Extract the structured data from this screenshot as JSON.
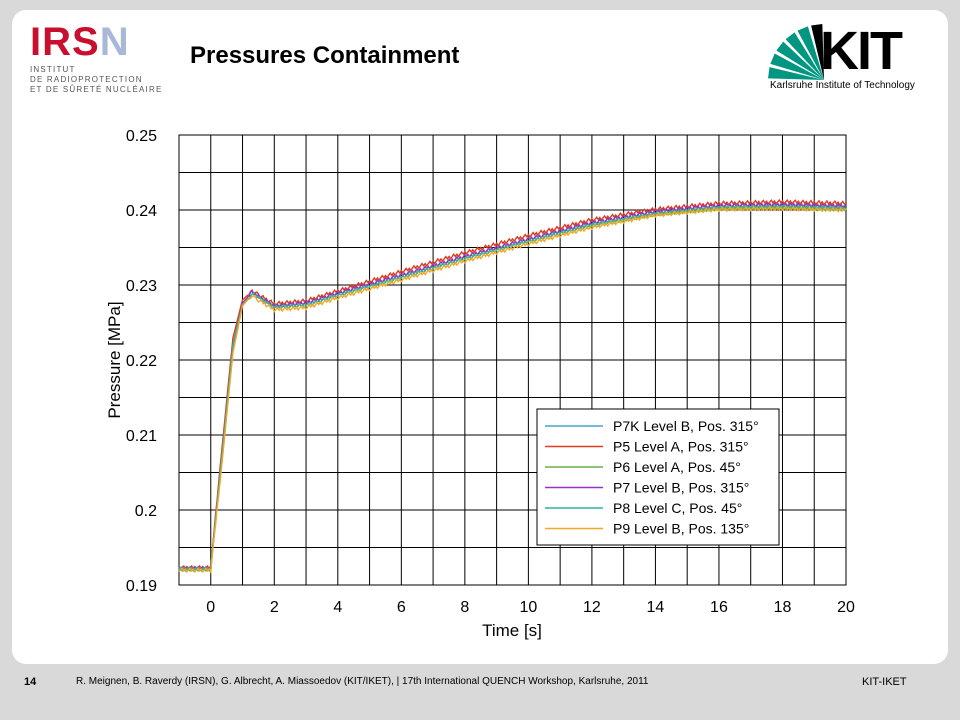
{
  "page": {
    "title": "Pressures Containment",
    "page_number": "14",
    "footer_text": "R. Meignen, B. Raverdy (IRSN), G. Albrecht, A. Miassoedov (KIT/IKET),  | 17th International QUENCH Workshop, Karlsruhe, 2011",
    "footer_right": "KIT-IKET"
  },
  "logos": {
    "irsn_letters": "IRS",
    "irsn_n": "N",
    "irsn_line1": "INSTITUT",
    "irsn_line2": "DE RADIOPROTECTION",
    "irsn_line3": "ET DE SÛRETÉ NUCLÉAIRE",
    "kit_word": "KIT",
    "kit_sub": "Karlsruhe Institute of Technology",
    "irsn_color": "#c8102e",
    "kit_color": "#009682"
  },
  "chart_data": {
    "type": "line",
    "xlabel": "Time [s]",
    "ylabel": "Pressure [MPa]",
    "xlim": [
      -1,
      20
    ],
    "ylim": [
      0.19,
      0.25
    ],
    "xticks": [
      0,
      2,
      4,
      6,
      8,
      10,
      12,
      14,
      16,
      18,
      20
    ],
    "yticks": [
      0.19,
      0.2,
      0.21,
      0.22,
      0.23,
      0.24,
      0.25
    ],
    "ytick_labels": [
      "0.19",
      "0.2",
      "0.21",
      "0.22",
      "0.23",
      "0.24",
      "0.25"
    ],
    "grid": true,
    "legend_position": "lower-right",
    "series": [
      {
        "name": "P7K Level B, Pos. 315°",
        "color": "#4aa6c8",
        "x": [
          -1,
          0,
          0.3,
          0.7,
          1.0,
          1.3,
          1.5,
          2.0,
          3.0,
          4.0,
          6.0,
          8.0,
          10.0,
          12.0,
          14.0,
          16.0,
          18.0,
          20.0
        ],
        "y": [
          0.1922,
          0.1922,
          0.205,
          0.222,
          0.2275,
          0.229,
          0.2285,
          0.2272,
          0.2275,
          0.2288,
          0.2312,
          0.2337,
          0.236,
          0.2382,
          0.2397,
          0.2405,
          0.2407,
          0.2405
        ]
      },
      {
        "name": "P5 Level A, Pos. 315°",
        "color": "#e03c1e",
        "x": [
          -1,
          0,
          0.3,
          0.7,
          1.0,
          1.3,
          1.5,
          2.0,
          3.0,
          4.0,
          6.0,
          8.0,
          10.0,
          12.0,
          14.0,
          16.0,
          18.0,
          20.0
        ],
        "y": [
          0.1923,
          0.1923,
          0.206,
          0.223,
          0.228,
          0.2292,
          0.2287,
          0.2275,
          0.2279,
          0.2292,
          0.2318,
          0.2343,
          0.2366,
          0.2387,
          0.2401,
          0.2409,
          0.2411,
          0.2409
        ]
      },
      {
        "name": "P6 Level A, Pos. 45°",
        "color": "#6ab04c",
        "x": [
          -1,
          0,
          0.3,
          0.7,
          1.0,
          1.3,
          1.5,
          2.0,
          3.0,
          4.0,
          6.0,
          8.0,
          10.0,
          12.0,
          14.0,
          16.0,
          18.0,
          20.0
        ],
        "y": [
          0.1921,
          0.1921,
          0.205,
          0.222,
          0.2274,
          0.2289,
          0.2284,
          0.2271,
          0.2274,
          0.2287,
          0.2311,
          0.2336,
          0.2359,
          0.238,
          0.2395,
          0.2402,
          0.2403,
          0.2401
        ]
      },
      {
        "name": "P7 Level B, Pos. 315°",
        "color": "#9b30c8",
        "x": [
          -1,
          0,
          0.3,
          0.7,
          1.0,
          1.3,
          1.5,
          2.0,
          3.0,
          4.0,
          6.0,
          8.0,
          10.0,
          12.0,
          14.0,
          16.0,
          18.0,
          20.0
        ],
        "y": [
          0.1922,
          0.1922,
          0.205,
          0.222,
          0.2276,
          0.229,
          0.2285,
          0.2272,
          0.2276,
          0.2289,
          0.2313,
          0.2338,
          0.2361,
          0.2383,
          0.2398,
          0.2406,
          0.2407,
          0.2405
        ]
      },
      {
        "name": "P8 Level C, Pos. 45°",
        "color": "#2bb5a0",
        "x": [
          -1,
          0,
          0.3,
          0.7,
          1.0,
          1.3,
          1.5,
          2.0,
          3.0,
          4.0,
          6.0,
          8.0,
          10.0,
          12.0,
          14.0,
          16.0,
          18.0,
          20.0
        ],
        "y": [
          0.1921,
          0.1921,
          0.205,
          0.222,
          0.2274,
          0.2288,
          0.2283,
          0.227,
          0.2273,
          0.2286,
          0.231,
          0.2335,
          0.2358,
          0.238,
          0.2395,
          0.2403,
          0.2404,
          0.2402
        ]
      },
      {
        "name": "P9 Level B, Pos. 135°",
        "color": "#f5a623",
        "x": [
          -1,
          0,
          0.3,
          0.7,
          1.0,
          1.3,
          1.5,
          2.0,
          3.0,
          4.0,
          6.0,
          8.0,
          10.0,
          12.0,
          14.0,
          16.0,
          18.0,
          20.0
        ],
        "y": [
          0.192,
          0.192,
          0.204,
          0.221,
          0.2272,
          0.2287,
          0.228,
          0.2267,
          0.227,
          0.2283,
          0.2307,
          0.2332,
          0.2355,
          0.2377,
          0.2393,
          0.2401,
          0.2402,
          0.24
        ]
      }
    ]
  }
}
